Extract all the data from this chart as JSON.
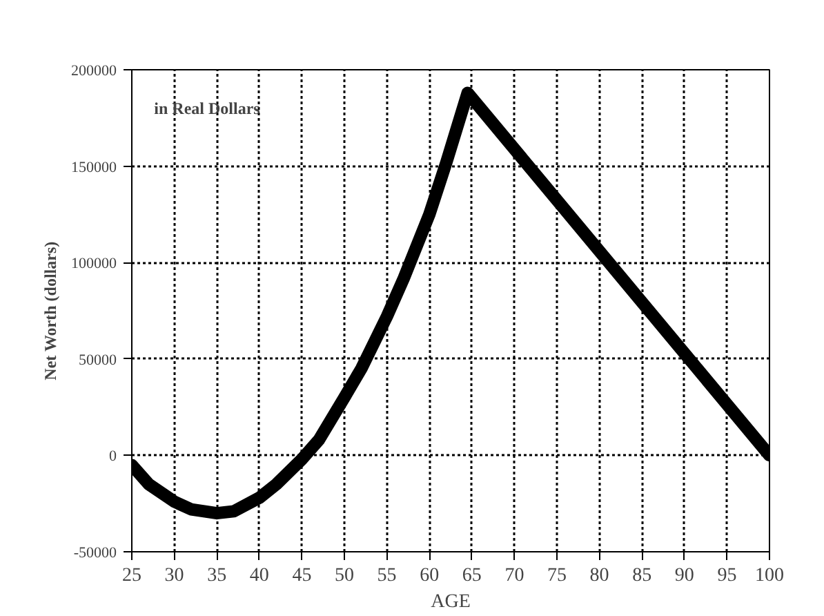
{
  "chart_data": {
    "type": "line",
    "xlabel": "AGE",
    "ylabel": "Net Worth (dollars)",
    "annotations": [
      "in Real Dollars"
    ],
    "x": [
      25,
      27,
      30,
      32,
      35,
      37,
      40,
      42,
      45,
      47,
      50,
      52,
      55,
      57,
      60,
      62,
      64.5,
      100
    ],
    "series": [
      {
        "color": "#000000",
        "values": [
          -5000,
          -15000,
          -24000,
          -28000,
          -30000,
          -29000,
          -22000,
          -15000,
          -2000,
          8000,
          30000,
          45000,
          72000,
          92000,
          125000,
          152000,
          188000,
          0
        ]
      }
    ],
    "xlim": [
      25,
      100
    ],
    "ylim": [
      -50000,
      200000
    ],
    "xticks": [
      25,
      30,
      35,
      40,
      45,
      50,
      55,
      60,
      65,
      70,
      75,
      80,
      85,
      90,
      95,
      100
    ],
    "yticks": [
      -50000,
      0,
      50000,
      100000,
      150000,
      200000
    ],
    "grid": true,
    "line_style": "solid"
  }
}
